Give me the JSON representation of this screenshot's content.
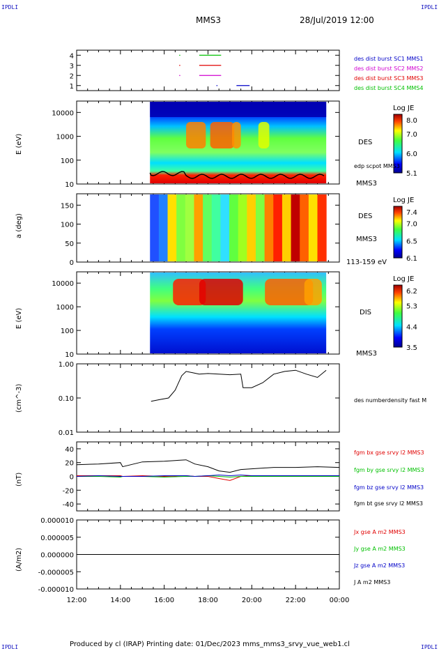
{
  "corners": {
    "tl": "IPDLI",
    "tr": "IPDLI",
    "bl": "IPDLI",
    "br": "IPDLI"
  },
  "header": {
    "mission": "MMS3",
    "date": "28/Jul/2019 12:00"
  },
  "footer": "Produced by cl (IRAP)   Printing date: 01/Dec/2023   mms_mms3_srvy_vue_web1.cl",
  "colors": {
    "blue": "#0000c8",
    "magenta": "#d000d0",
    "red": "#e00000",
    "green": "#00c000",
    "black": "#000000"
  },
  "time_axis": {
    "ticks": [
      "12:00",
      "14:00",
      "16:00",
      "18:00",
      "20:00",
      "22:00",
      "00:00"
    ],
    "start_hours": 12,
    "end_hours": 24
  },
  "panels": {
    "p1": {
      "yticks": [
        "4",
        "3",
        "2",
        "1"
      ],
      "legend": [
        "des dist burst SC1 MMS1",
        "des dist burst SC2 MMS2",
        "des dist burst SC3 MMS3",
        "des dist burst SC4 MMS4"
      ]
    },
    "p2": {
      "ylabel": "E (eV)",
      "yticks": [
        "10000",
        "1000",
        "100",
        "10"
      ],
      "right": [
        "DES",
        "edp scpot MMS3",
        "MMS3"
      ],
      "cbar": {
        "title": "Log JE",
        "ticks": [
          "8.0",
          "7.0",
          "6.0",
          "5.1"
        ]
      }
    },
    "p3": {
      "ylabel": "a (deg)",
      "yticks": [
        "150",
        "100",
        "50",
        "0"
      ],
      "right": [
        "DES",
        "MMS3",
        "113-159 eV"
      ],
      "cbar": {
        "title": "Log JE",
        "ticks": [
          "7.4",
          "7.0",
          "6.5",
          "6.1"
        ]
      }
    },
    "p4": {
      "ylabel": "E (eV)",
      "yticks": [
        "10000",
        "1000",
        "100",
        "10"
      ],
      "right": [
        "DIS",
        "MMS3"
      ],
      "cbar": {
        "title": "Log JE",
        "ticks": [
          "6.2",
          "5.3",
          "4.4",
          "3.5"
        ]
      }
    },
    "p5": {
      "ylabel": "(cm^-3)",
      "yticks": [
        "1.00",
        "0.10",
        "0.01"
      ],
      "right": [
        "des numberdensity fast M"
      ]
    },
    "p6": {
      "ylabel": "(nT)",
      "yticks": [
        "40",
        "20",
        "0",
        "-20",
        "-40"
      ],
      "right": [
        "fgm bx gse srvy l2 MMS3",
        "fgm by gse srvy l2 MMS3",
        "fgm bz gse srvy l2 MMS3",
        "fgm bt gse srvy l2 MMS3"
      ]
    },
    "p7": {
      "ylabel": "(A/m2)",
      "yticks": [
        "0.000010",
        "0.000005",
        "0.000000",
        "-0.000005",
        "-0.000010"
      ],
      "right": [
        "Jx gse A m2 MMS3",
        "Jy gse A m2 MMS3",
        "Jz gse A m2 MMS3",
        "J A m2 MMS3"
      ]
    }
  },
  "chart_data": [
    {
      "type": "scatter",
      "name": "burst availability",
      "ylim": [
        0.5,
        4.5
      ],
      "series": [
        {
          "name": "SC1",
          "values": [
            [
              19.3,
              1
            ],
            [
              19.9,
              1
            ]
          ]
        },
        {
          "name": "SC2",
          "values": [
            [
              17.6,
              2
            ],
            [
              18.6,
              2
            ]
          ]
        },
        {
          "name": "SC3",
          "values": [
            [
              17.6,
              3
            ],
            [
              18.6,
              3
            ]
          ]
        },
        {
          "name": "SC4",
          "values": [
            [
              17.6,
              4
            ],
            [
              18.6,
              4
            ]
          ]
        }
      ]
    },
    {
      "type": "heatmap",
      "name": "DES energy spectrogram",
      "xlim_hours": [
        15.35,
        23.4
      ],
      "ylim": [
        10,
        30000
      ],
      "yscale": "log",
      "zlim": [
        5.1,
        8.0
      ]
    },
    {
      "type": "heatmap",
      "name": "DES pitch angle",
      "xlim_hours": [
        15.35,
        23.4
      ],
      "ylim": [
        0,
        180
      ],
      "zlim": [
        6.1,
        7.4
      ]
    },
    {
      "type": "heatmap",
      "name": "DIS energy spectrogram",
      "xlim_hours": [
        15.35,
        23.4
      ],
      "ylim": [
        10,
        30000
      ],
      "yscale": "log",
      "zlim": [
        3.5,
        6.2
      ]
    },
    {
      "type": "line",
      "name": "density",
      "yscale": "log",
      "ylim": [
        0.01,
        1.0
      ],
      "x": [
        15.4,
        15.8,
        16.2,
        16.5,
        16.8,
        17.0,
        17.3,
        17.6,
        18.0,
        18.5,
        19.0,
        19.5,
        19.6,
        20.0,
        20.5,
        21.0,
        21.5,
        22.0,
        22.5,
        23.0,
        23.4
      ],
      "values": [
        0.08,
        0.09,
        0.1,
        0.17,
        0.45,
        0.6,
        0.55,
        0.5,
        0.52,
        0.5,
        0.48,
        0.5,
        0.2,
        0.2,
        0.28,
        0.5,
        0.6,
        0.65,
        0.5,
        0.4,
        0.65
      ]
    },
    {
      "type": "line",
      "name": "magnetic field",
      "ylim": [
        -50,
        50
      ],
      "x": [
        12.0,
        13.0,
        14.0,
        14.1,
        15.0,
        16.0,
        17.0,
        17.4,
        18.0,
        18.5,
        19.0,
        19.5,
        20.0,
        21.0,
        22.0,
        23.0,
        24.0
      ],
      "series": [
        {
          "name": "bt",
          "values": [
            17,
            18,
            20,
            14,
            21,
            22,
            24,
            18,
            14,
            8,
            6,
            10,
            11,
            13,
            13,
            14,
            13
          ]
        },
        {
          "name": "bx",
          "values": [
            1,
            1,
            1,
            0,
            1,
            0,
            1,
            0,
            0,
            -3,
            -6,
            0,
            1,
            0,
            1,
            0,
            1
          ]
        },
        {
          "name": "by",
          "values": [
            0,
            0,
            -1,
            0,
            0,
            -1,
            0,
            0,
            1,
            0,
            -1,
            0,
            0,
            0,
            0,
            0,
            0
          ]
        },
        {
          "name": "bz",
          "values": [
            0,
            1,
            0,
            0,
            0,
            1,
            1,
            0,
            1,
            2,
            1,
            2,
            1,
            1,
            1,
            1,
            1
          ]
        }
      ]
    },
    {
      "type": "line",
      "name": "current density",
      "ylim": [
        -1e-05,
        1e-05
      ],
      "x": [
        12.0,
        24.0
      ],
      "series": [
        {
          "name": "J",
          "values": [
            0,
            0
          ]
        }
      ]
    }
  ]
}
